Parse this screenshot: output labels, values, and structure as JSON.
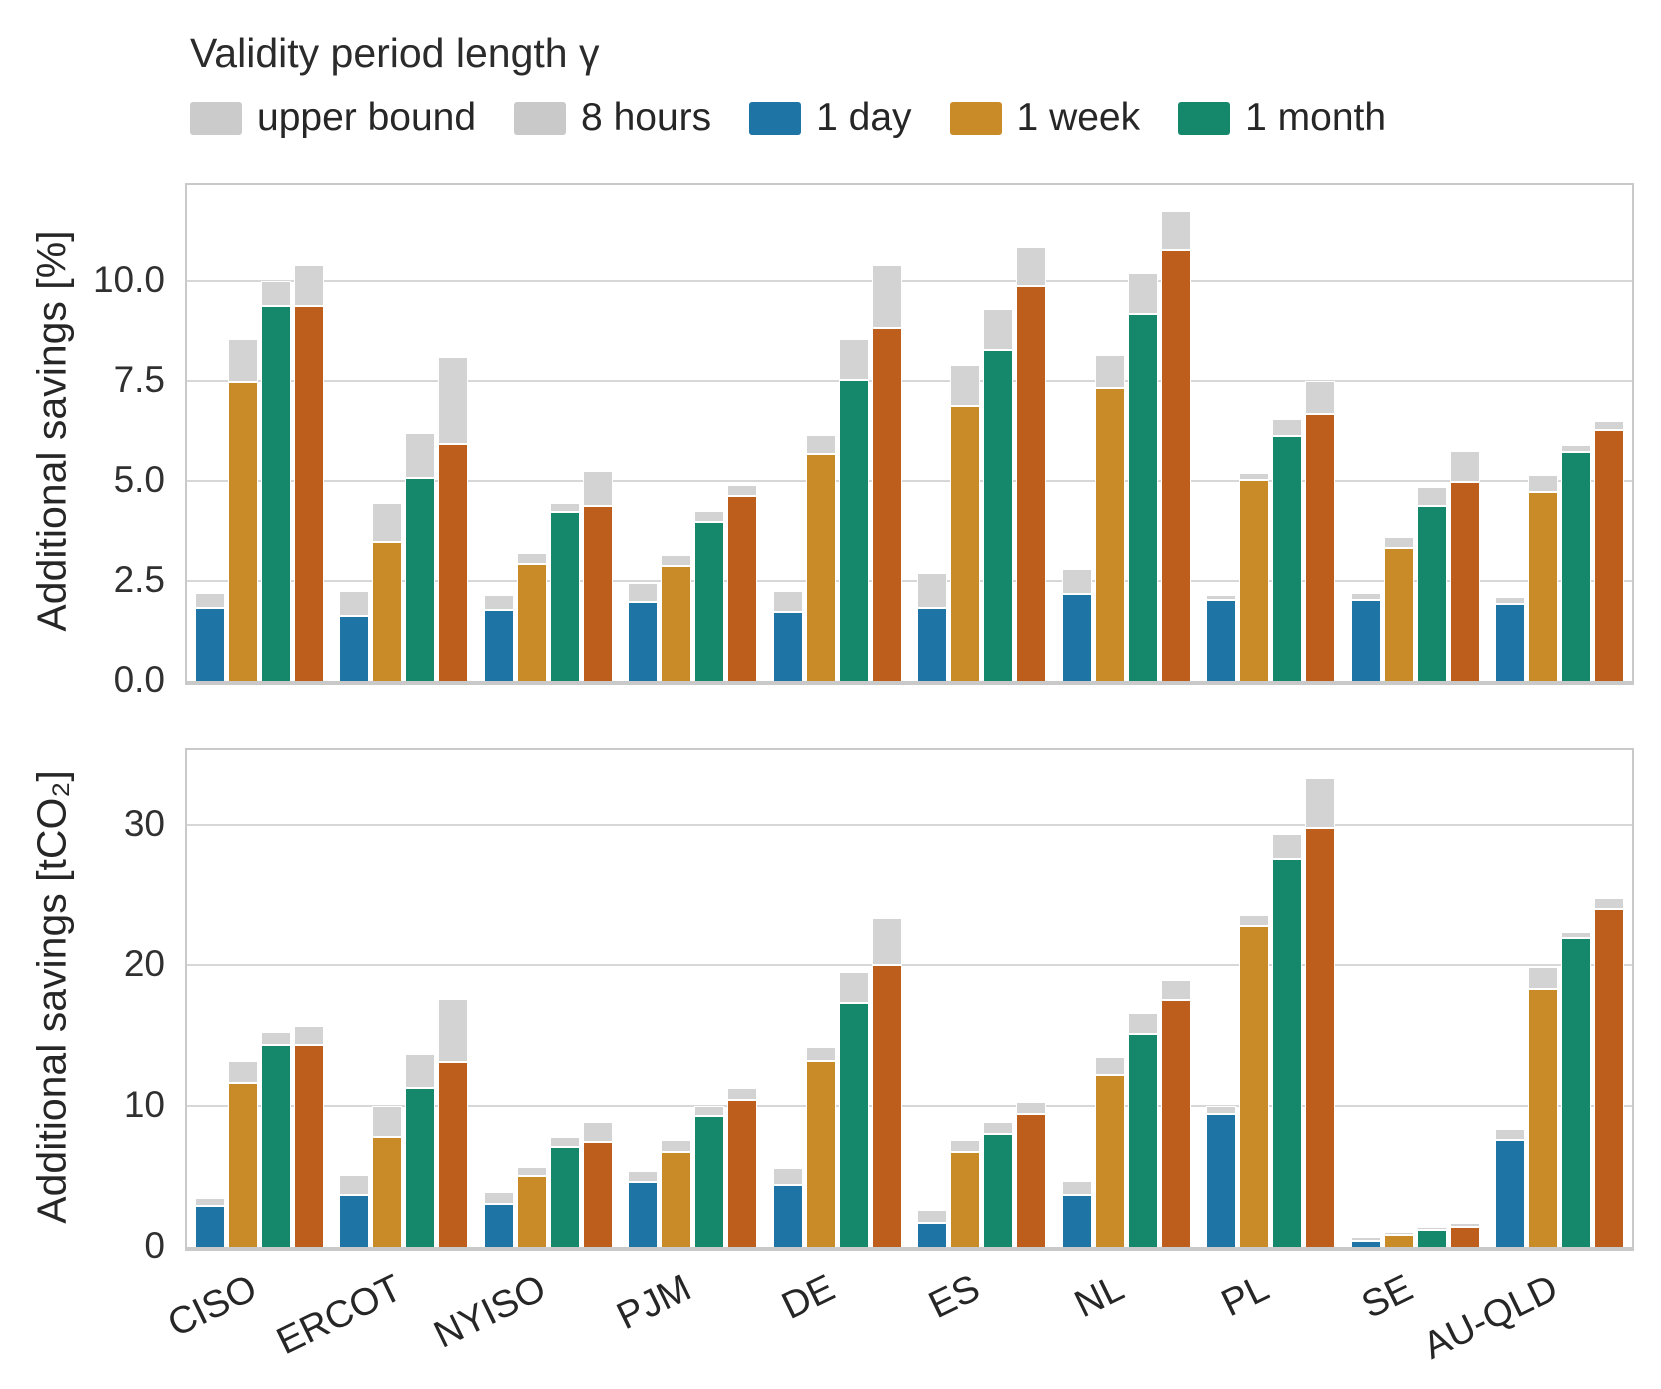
{
  "legend": {
    "title": "Validity period length γ",
    "entries": [
      {
        "label": "upper bound",
        "color": "#cbcbcb"
      },
      {
        "label": "8 hours",
        "color": "#c9c9c9"
      },
      {
        "label": "1 day",
        "color": "#1f74a6"
      },
      {
        "label": "1 week",
        "color": "#c88b28"
      },
      {
        "label": "1 month",
        "color": "#15876b"
      }
    ]
  },
  "chart_data": [
    {
      "type": "bar",
      "title": "",
      "xlabel": "",
      "ylabel": "Additional savings [%]",
      "grid": "horizontal",
      "legend_position": "top-left-above-figure",
      "categories": [
        "CISO",
        "ERCOT",
        "NYISO",
        "PJM",
        "DE",
        "ES",
        "NL",
        "PL",
        "SE",
        "AU-QLD"
      ],
      "yticks": [
        {
          "v": 0,
          "label": "0.0"
        },
        {
          "v": 2.5,
          "label": "2.5"
        },
        {
          "v": 5,
          "label": "5.0"
        },
        {
          "v": 7.5,
          "label": "7.5"
        },
        {
          "v": 10,
          "label": "10.0"
        }
      ],
      "ylim": [
        0,
        12.4
      ],
      "show_xticklabels": false,
      "upper_bound_color": "#d3d3d3",
      "series": [
        {
          "name": "1 day",
          "color": "#1f74a6",
          "values": [
            1.85,
            1.65,
            1.8,
            2.0,
            1.75,
            1.85,
            2.2,
            2.05,
            2.05,
            1.95
          ],
          "upper_bounds": [
            2.2,
            2.25,
            2.15,
            2.45,
            2.25,
            2.7,
            2.8,
            2.15,
            2.2,
            2.1
          ]
        },
        {
          "name": "1 week",
          "color": "#c88b28",
          "values": [
            7.5,
            3.5,
            2.95,
            2.9,
            5.7,
            6.9,
            7.35,
            5.05,
            3.35,
            4.75
          ],
          "upper_bounds": [
            8.55,
            4.45,
            3.2,
            3.15,
            6.15,
            7.9,
            8.15,
            5.2,
            3.6,
            5.15
          ]
        },
        {
          "name": "1 month",
          "color": "#15876b",
          "values": [
            9.4,
            5.1,
            4.25,
            4.0,
            7.55,
            8.3,
            9.2,
            6.15,
            4.4,
            5.75
          ],
          "upper_bounds": [
            10.0,
            6.2,
            4.45,
            4.25,
            8.55,
            9.3,
            10.2,
            6.55,
            4.85,
            5.9
          ]
        },
        {
          "name": "unlabeled (orange)",
          "color": "#bd5e1c",
          "values": [
            9.4,
            5.95,
            4.4,
            4.65,
            8.85,
            9.9,
            10.8,
            6.7,
            5.0,
            6.3
          ],
          "upper_bounds": [
            10.4,
            8.1,
            5.25,
            4.9,
            10.4,
            10.85,
            11.75,
            7.5,
            5.75,
            6.5
          ]
        }
      ]
    },
    {
      "type": "bar",
      "title": "",
      "xlabel": "",
      "ylabel": "Additional savings [tCO₂]",
      "grid": "horizontal",
      "categories": [
        "CISO",
        "ERCOT",
        "NYISO",
        "PJM",
        "DE",
        "ES",
        "NL",
        "PL",
        "SE",
        "AU-QLD"
      ],
      "yticks": [
        {
          "v": 0,
          "label": "0"
        },
        {
          "v": 10,
          "label": "10"
        },
        {
          "v": 20,
          "label": "20"
        },
        {
          "v": 30,
          "label": "30"
        }
      ],
      "ylim": [
        0,
        35.3
      ],
      "show_xticklabels": true,
      "upper_bound_color": "#d3d3d3",
      "series": [
        {
          "name": "1 day",
          "color": "#1f74a6",
          "values": [
            3.0,
            3.8,
            3.1,
            4.7,
            4.5,
            1.8,
            3.8,
            9.5,
            0.5,
            7.7
          ],
          "upper_bounds": [
            3.5,
            5.1,
            3.9,
            5.4,
            5.6,
            2.6,
            4.7,
            10.0,
            0.7,
            8.4
          ]
        },
        {
          "name": "1 week",
          "color": "#c88b28",
          "values": [
            11.7,
            7.9,
            5.1,
            6.8,
            13.3,
            6.8,
            12.3,
            22.9,
            0.9,
            18.4
          ],
          "upper_bounds": [
            13.2,
            10.0,
            5.7,
            7.6,
            14.2,
            7.6,
            13.5,
            23.6,
            1.1,
            19.9
          ]
        },
        {
          "name": "1 month",
          "color": "#15876b",
          "values": [
            14.4,
            11.4,
            7.2,
            9.4,
            17.4,
            8.1,
            15.2,
            27.6,
            1.3,
            22.0
          ],
          "upper_bounds": [
            15.3,
            13.7,
            7.8,
            10.0,
            19.5,
            8.9,
            16.6,
            29.3,
            1.4,
            22.4
          ]
        },
        {
          "name": "unlabeled (orange)",
          "color": "#bd5e1c",
          "values": [
            14.4,
            13.2,
            7.5,
            10.5,
            20.1,
            9.5,
            17.6,
            29.8,
            1.5,
            24.1
          ],
          "upper_bounds": [
            15.7,
            17.6,
            8.9,
            11.3,
            23.4,
            10.3,
            19.0,
            33.3,
            1.7,
            24.8
          ]
        }
      ]
    }
  ]
}
